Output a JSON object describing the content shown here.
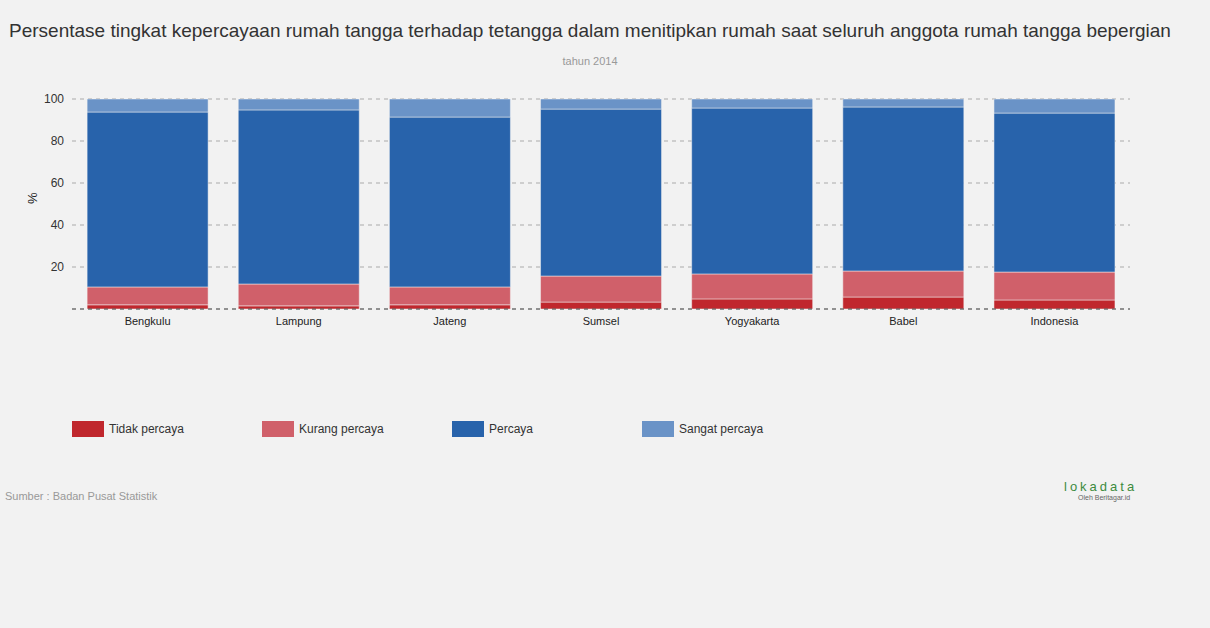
{
  "chart_data": {
    "type": "bar",
    "title": "Persentase tingkat kepercayaan rumah tangga terhadap tetangga dalam menitipkan rumah saat seluruh anggota rumah tangga bepergian",
    "subtitle": "tahun 2014",
    "y_label": "%",
    "source": "Sumber : Badan Pusat Statistik",
    "logo": [
      "lokadata",
      "Oleh Beritagar.id"
    ],
    "categories": [
      "Bengkulu",
      "Lampung",
      "Jateng",
      "Sumsel",
      "Yogyakarta",
      "Babel",
      "Indonesia"
    ],
    "series": [
      {
        "name": "Tidak percaya",
        "color": "#c0272d",
        "values": [
          2,
          1.5,
          2,
          3.3,
          4.8,
          5.7,
          4.3
        ]
      },
      {
        "name": "Kurang percaya",
        "color": "#d0606a",
        "values": [
          8.5,
          10.4,
          8.5,
          12.4,
          11.9,
          12.4,
          13.3
        ]
      },
      {
        "name": "Percaya",
        "color": "#2863ab",
        "values": [
          83.3,
          82.9,
          80.9,
          79.5,
          79,
          78.1,
          75.7
        ]
      },
      {
        "name": "Sangat percaya",
        "color": "#6a93c7",
        "values": [
          6.2,
          5.2,
          8.6,
          4.8,
          4.3,
          3.8,
          6.7
        ]
      }
    ],
    "ylim": [
      0,
      100
    ],
    "yticks": [
      20,
      40,
      60,
      80,
      100
    ],
    "stacked": true,
    "grid": true,
    "legend": "bottom"
  }
}
